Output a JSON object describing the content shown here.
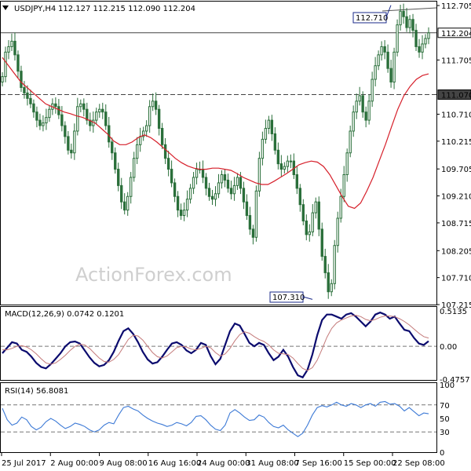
{
  "colors": {
    "candle": "#2a6f3a",
    "ma": "#d61f2a",
    "macd": "#0b0b6e",
    "macd_signal": "#c47a7a",
    "rsi": "#3d7ad6",
    "level": "#444444",
    "grid": "#bbbbbb",
    "price_label_bg": "#ffffff",
    "price_label_border": "#000000",
    "watermark": "#cfcfcf"
  },
  "header": {
    "symbol_tf": "USDJPY,H4",
    "ohlc": "112.127 112.215 112.090 112.204"
  },
  "watermark": "ActionForex.com",
  "chart_data": [
    {
      "id": "price",
      "type": "candlestick",
      "title": "USDJPY,H4",
      "ylim": [
        107.215,
        112.72
      ],
      "yticks": [
        "112.705",
        "112.204",
        "111.705",
        "111.070",
        "110.710",
        "110.215",
        "109.705",
        "109.210",
        "108.715",
        "108.205",
        "107.710",
        "107.215"
      ],
      "xticks": [
        "25 Jul 2017",
        "2 Aug 00:00",
        "9 Aug 08:00",
        "16 Aug 16:00",
        "24 Aug 00:00",
        "31 Aug 08:00",
        "7 Sep 16:00",
        "15 Sep 00:00",
        "22 Sep 08:00"
      ],
      "close_series": [
        111.4,
        111.85,
        111.95,
        112.05,
        111.8,
        111.5,
        111.2,
        111.1,
        111.0,
        110.9,
        110.75,
        110.6,
        110.5,
        110.55,
        110.65,
        110.8,
        110.9,
        110.85,
        110.7,
        110.5,
        110.3,
        110.05,
        110.0,
        110.4,
        110.85,
        110.9,
        110.8,
        110.6,
        110.5,
        110.6,
        110.75,
        110.8,
        110.75,
        110.5,
        110.2,
        110.0,
        109.7,
        109.4,
        109.1,
        108.95,
        109.2,
        109.55,
        109.9,
        110.15,
        110.3,
        110.4,
        110.5,
        110.85,
        110.95,
        110.8,
        110.45,
        110.15,
        109.9,
        109.7,
        109.45,
        109.2,
        108.95,
        108.85,
        108.95,
        109.15,
        109.35,
        109.55,
        109.7,
        109.7,
        109.55,
        109.35,
        109.2,
        109.15,
        109.25,
        109.45,
        109.6,
        109.5,
        109.35,
        109.25,
        109.4,
        109.55,
        109.35,
        109.1,
        108.85,
        108.6,
        108.45,
        109.3,
        109.9,
        110.25,
        110.45,
        110.6,
        110.35,
        110.05,
        109.8,
        109.7,
        109.75,
        109.85,
        109.85,
        109.6,
        109.35,
        109.05,
        108.75,
        108.5,
        108.55,
        108.9,
        109.1,
        108.6,
        108.1,
        107.8,
        107.45,
        107.6,
        108.3,
        108.8,
        109.2,
        109.6,
        110.0,
        110.4,
        110.75,
        110.95,
        111.05,
        110.75,
        110.6,
        110.95,
        111.35,
        111.6,
        111.8,
        111.95,
        111.85,
        111.55,
        111.3,
        111.85,
        112.35,
        112.6,
        112.5,
        112.3,
        112.45,
        112.25,
        111.95,
        111.85,
        112.0,
        112.1,
        112.204
      ],
      "ma_series": [
        111.75,
        111.6,
        111.45,
        111.3,
        111.2,
        111.1,
        111.0,
        110.9,
        110.85,
        110.8,
        110.75,
        110.72,
        110.68,
        110.65,
        110.6,
        110.55,
        110.45,
        110.35,
        110.22,
        110.15,
        110.15,
        110.2,
        110.28,
        110.33,
        110.28,
        110.2,
        110.1,
        110.0,
        109.9,
        109.82,
        109.76,
        109.72,
        109.7,
        109.7,
        109.72,
        109.72,
        109.7,
        109.68,
        109.62,
        109.55,
        109.5,
        109.45,
        109.42,
        109.42,
        109.48,
        109.55,
        109.62,
        109.7,
        109.78,
        109.82,
        109.85,
        109.83,
        109.75,
        109.6,
        109.4,
        109.2,
        109.02,
        108.98,
        109.08,
        109.3,
        109.55,
        109.85,
        110.15,
        110.48,
        110.8,
        111.05,
        111.22,
        111.35,
        111.42,
        111.45
      ],
      "levels": [
        112.204,
        111.07
      ],
      "annotations": [
        {
          "label": "112.710",
          "value": 112.71
        },
        {
          "label": "107.310",
          "value": 107.31
        }
      ]
    },
    {
      "id": "macd",
      "type": "line",
      "title": "MACD(12,26,9) 0.0742 0.1201",
      "ylim": [
        -0.4757,
        0.5135
      ],
      "yticks": [
        "0.5135",
        "0.00",
        "-0.4757"
      ],
      "zero_line": 0,
      "series": [
        {
          "name": "MACD",
          "values": [
            -0.1,
            -0.02,
            0.06,
            0.04,
            -0.05,
            -0.08,
            -0.15,
            -0.24,
            -0.3,
            -0.32,
            -0.26,
            -0.18,
            -0.1,
            0.0,
            0.06,
            0.07,
            0.04,
            -0.06,
            -0.16,
            -0.24,
            -0.29,
            -0.27,
            -0.2,
            -0.08,
            0.08,
            0.22,
            0.26,
            0.18,
            0.06,
            -0.08,
            -0.19,
            -0.25,
            -0.23,
            -0.15,
            -0.05,
            0.04,
            0.06,
            0.02,
            -0.06,
            -0.1,
            -0.05,
            0.05,
            0.02,
            -0.14,
            -0.26,
            -0.18,
            0.02,
            0.22,
            0.33,
            0.3,
            0.18,
            0.05,
            0.0,
            0.05,
            0.02,
            -0.1,
            -0.2,
            -0.15,
            -0.05,
            -0.15,
            -0.3,
            -0.42,
            -0.45,
            -0.34,
            -0.12,
            0.16,
            0.38,
            0.46,
            0.46,
            0.43,
            0.4,
            0.46,
            0.48,
            0.43,
            0.36,
            0.29,
            0.36,
            0.46,
            0.49,
            0.46,
            0.4,
            0.43,
            0.33,
            0.24,
            0.22,
            0.12,
            0.04,
            0.02,
            0.0742
          ]
        },
        {
          "name": "Signal",
          "values": [
            -0.05,
            -0.05,
            -0.03,
            0.0,
            0.01,
            -0.01,
            -0.05,
            -0.11,
            -0.18,
            -0.24,
            -0.26,
            -0.24,
            -0.19,
            -0.13,
            -0.06,
            0.0,
            0.03,
            0.02,
            -0.03,
            -0.1,
            -0.17,
            -0.22,
            -0.23,
            -0.19,
            -0.12,
            -0.01,
            0.1,
            0.16,
            0.15,
            0.09,
            0.0,
            -0.09,
            -0.15,
            -0.17,
            -0.14,
            -0.08,
            -0.02,
            0.0,
            -0.01,
            -0.04,
            -0.05,
            -0.03,
            0.0,
            -0.02,
            -0.09,
            -0.14,
            -0.11,
            -0.03,
            0.08,
            0.17,
            0.21,
            0.19,
            0.14,
            0.1,
            0.07,
            0.02,
            -0.05,
            -0.1,
            -0.11,
            -0.12,
            -0.17,
            -0.25,
            -0.32,
            -0.35,
            -0.31,
            -0.2,
            -0.04,
            0.13,
            0.26,
            0.34,
            0.38,
            0.41,
            0.44,
            0.45,
            0.43,
            0.39,
            0.37,
            0.39,
            0.42,
            0.44,
            0.44,
            0.43,
            0.4,
            0.36,
            0.31,
            0.25,
            0.19,
            0.14,
            0.1201
          ]
        }
      ]
    },
    {
      "id": "rsi",
      "type": "line",
      "title": "RSI(14) 56.8081",
      "ylim": [
        0,
        100
      ],
      "yticks": [
        "100",
        "70",
        "50",
        "30",
        "0"
      ],
      "levels": [
        70,
        30
      ],
      "series": [
        {
          "name": "RSI",
          "values": [
            65,
            48,
            40,
            43,
            52,
            48,
            38,
            33,
            37,
            45,
            50,
            46,
            40,
            35,
            38,
            43,
            41,
            38,
            33,
            30,
            33,
            40,
            44,
            42,
            55,
            66,
            68,
            64,
            61,
            55,
            50,
            46,
            43,
            41,
            38,
            40,
            44,
            42,
            39,
            44,
            53,
            54,
            48,
            40,
            34,
            32,
            40,
            58,
            63,
            58,
            52,
            47,
            48,
            55,
            52,
            44,
            38,
            36,
            40,
            33,
            28,
            23,
            28,
            40,
            55,
            66,
            69,
            67,
            70,
            74,
            70,
            68,
            72,
            70,
            66,
            70,
            72,
            68,
            74,
            75,
            71,
            72,
            68,
            61,
            66,
            60,
            54,
            58,
            56.8081
          ]
        }
      ]
    }
  ]
}
